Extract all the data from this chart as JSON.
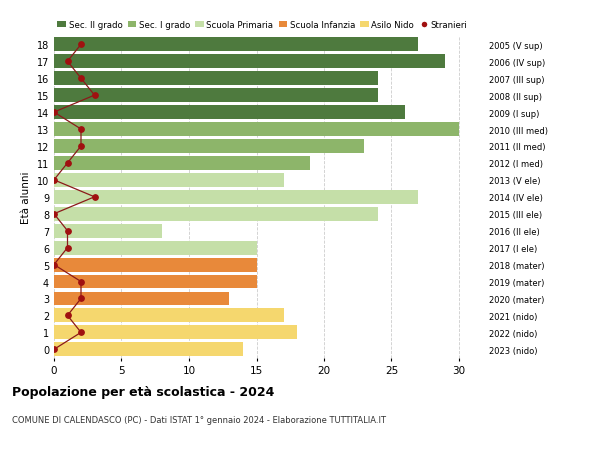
{
  "ages": [
    0,
    1,
    2,
    3,
    4,
    5,
    6,
    7,
    8,
    9,
    10,
    11,
    12,
    13,
    14,
    15,
    16,
    17,
    18
  ],
  "bar_values": [
    14,
    18,
    17,
    13,
    15,
    15,
    15,
    8,
    24,
    27,
    17,
    19,
    23,
    30,
    26,
    24,
    24,
    29,
    27
  ],
  "stranieri": [
    0,
    2,
    1,
    2,
    2,
    0,
    1,
    1,
    0,
    3,
    0,
    1,
    2,
    2,
    0,
    3,
    2,
    1,
    2
  ],
  "right_labels": [
    "2023 (nido)",
    "2022 (nido)",
    "2021 (nido)",
    "2020 (mater)",
    "2019 (mater)",
    "2018 (mater)",
    "2017 (I ele)",
    "2016 (II ele)",
    "2015 (III ele)",
    "2014 (IV ele)",
    "2013 (V ele)",
    "2012 (I med)",
    "2011 (II med)",
    "2010 (III med)",
    "2009 (I sup)",
    "2008 (II sup)",
    "2007 (III sup)",
    "2006 (IV sup)",
    "2005 (V sup)"
  ],
  "bar_colors": [
    "#f5d76e",
    "#f5d76e",
    "#f5d76e",
    "#e8893a",
    "#e8893a",
    "#e8893a",
    "#c5dfa8",
    "#c5dfa8",
    "#c5dfa8",
    "#c5dfa8",
    "#c5dfa8",
    "#8db56a",
    "#8db56a",
    "#8db56a",
    "#4e7a3e",
    "#4e7a3e",
    "#4e7a3e",
    "#4e7a3e",
    "#4e7a3e"
  ],
  "legend_labels": [
    "Sec. II grado",
    "Sec. I grado",
    "Scuola Primaria",
    "Scuola Infanzia",
    "Asilo Nido",
    "Stranieri"
  ],
  "legend_colors": [
    "#4e7a3e",
    "#8db56a",
    "#c5dfa8",
    "#e8893a",
    "#f5d76e",
    "#a01010"
  ],
  "title": "Popolazione per età scolastica - 2024",
  "subtitle": "COMUNE DI CALENDASCO (PC) - Dati ISTAT 1° gennaio 2024 - Elaborazione TUTTITALIA.IT",
  "ylabel": "Età alunni",
  "xlim": [
    0,
    32
  ],
  "xticks": [
    0,
    5,
    10,
    15,
    20,
    25,
    30
  ],
  "stranieri_color": "#a01010",
  "line_color": "#8b1a1a",
  "bg_color": "#ffffff",
  "grid_color": "#cccccc"
}
